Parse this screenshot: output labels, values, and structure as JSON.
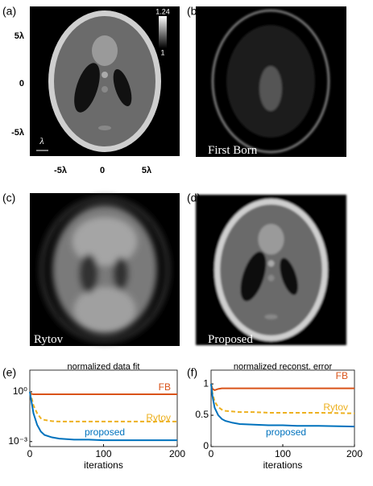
{
  "panels": [
    {
      "label": "(a)"
    },
    {
      "label": "(b)",
      "caption": "First Born"
    },
    {
      "label": "(c)",
      "caption": "Rytov"
    },
    {
      "label": "(d)",
      "caption": "Proposed"
    }
  ],
  "phantom_axes": {
    "colorbar_max": "1.24",
    "colorbar_min": "1",
    "scale_label": "λ",
    "y_ticks": [
      "5λ",
      "0",
      "-5λ"
    ],
    "x_ticks": [
      "-5λ",
      "0",
      "5λ"
    ]
  },
  "chart_data": [
    {
      "type": "line",
      "label": "(e)",
      "title": "normalized data fit",
      "xlabel": "iterations",
      "log_y": true,
      "xlim": [
        0,
        200
      ],
      "xticks": [
        0,
        100,
        200
      ],
      "ylim": [
        0.0005,
        20
      ],
      "yticks": [
        {
          "value": 1,
          "label": "10⁰"
        },
        {
          "value": 0.001,
          "label": "10⁻³"
        }
      ],
      "x": [
        0,
        2,
        5,
        10,
        15,
        20,
        30,
        40,
        60,
        80,
        100,
        120,
        150,
        200
      ],
      "series": [
        {
          "name": "FB",
          "color": "#d95319",
          "dashed": false,
          "values": [
            1,
            0.75,
            0.7,
            0.7,
            0.7,
            0.7,
            0.7,
            0.7,
            0.7,
            0.7,
            0.7,
            0.7,
            0.7,
            0.7
          ]
        },
        {
          "name": "Rytov",
          "color": "#edb120",
          "dashed": true,
          "values": [
            1,
            0.5,
            0.15,
            0.05,
            0.025,
            0.02,
            0.017,
            0.016,
            0.016,
            0.016,
            0.016,
            0.016,
            0.016,
            0.016
          ]
        },
        {
          "name": "proposed",
          "color": "#0072bd",
          "dashed": false,
          "values": [
            1,
            0.3,
            0.05,
            0.01,
            0.004,
            0.0025,
            0.0018,
            0.0015,
            0.0013,
            0.0013,
            0.0012,
            0.0012,
            0.0012,
            0.0012
          ]
        }
      ]
    },
    {
      "type": "line",
      "label": "(f)",
      "title": "normalized reconst. error",
      "xlabel": "iterations",
      "log_y": false,
      "xlim": [
        0,
        200
      ],
      "xticks": [
        0,
        100,
        200
      ],
      "ylim": [
        0,
        1.22
      ],
      "yticks": [
        0,
        0.5,
        1
      ],
      "x": [
        0,
        2,
        5,
        10,
        15,
        20,
        30,
        40,
        60,
        80,
        100,
        120,
        150,
        200
      ],
      "series": [
        {
          "name": "FB",
          "color": "#d95319",
          "dashed": false,
          "values": [
            1,
            0.92,
            0.9,
            0.92,
            0.93,
            0.93,
            0.93,
            0.93,
            0.93,
            0.93,
            0.93,
            0.93,
            0.93,
            0.93
          ]
        },
        {
          "name": "Rytov",
          "color": "#edb120",
          "dashed": true,
          "values": [
            1,
            0.85,
            0.72,
            0.63,
            0.59,
            0.57,
            0.56,
            0.55,
            0.55,
            0.54,
            0.54,
            0.54,
            0.54,
            0.53
          ]
        },
        {
          "name": "proposed",
          "color": "#0072bd",
          "dashed": false,
          "values": [
            1,
            0.8,
            0.62,
            0.5,
            0.44,
            0.41,
            0.38,
            0.36,
            0.35,
            0.34,
            0.34,
            0.33,
            0.33,
            0.32
          ]
        }
      ]
    }
  ]
}
